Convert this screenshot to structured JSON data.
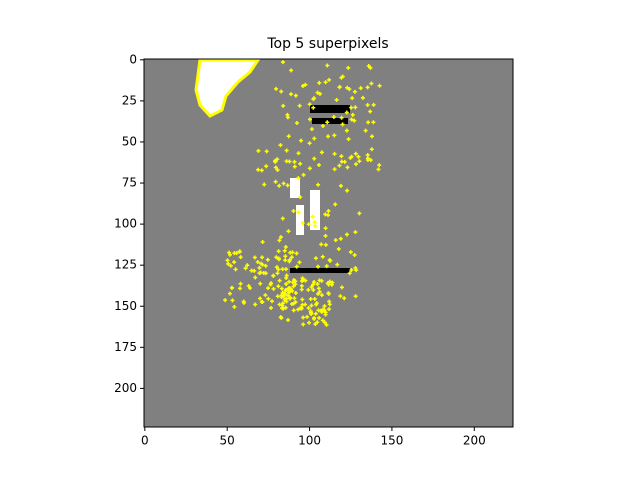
{
  "chart_data": {
    "type": "image",
    "title": "Top 5 superpixels",
    "xlim": [
      -0.5,
      223.5
    ],
    "ylim": [
      223.5,
      -0.5
    ],
    "xticks": [
      0,
      50,
      100,
      150,
      200
    ],
    "yticks": [
      0,
      25,
      50,
      75,
      100,
      125,
      150,
      175,
      200
    ]
  }
}
